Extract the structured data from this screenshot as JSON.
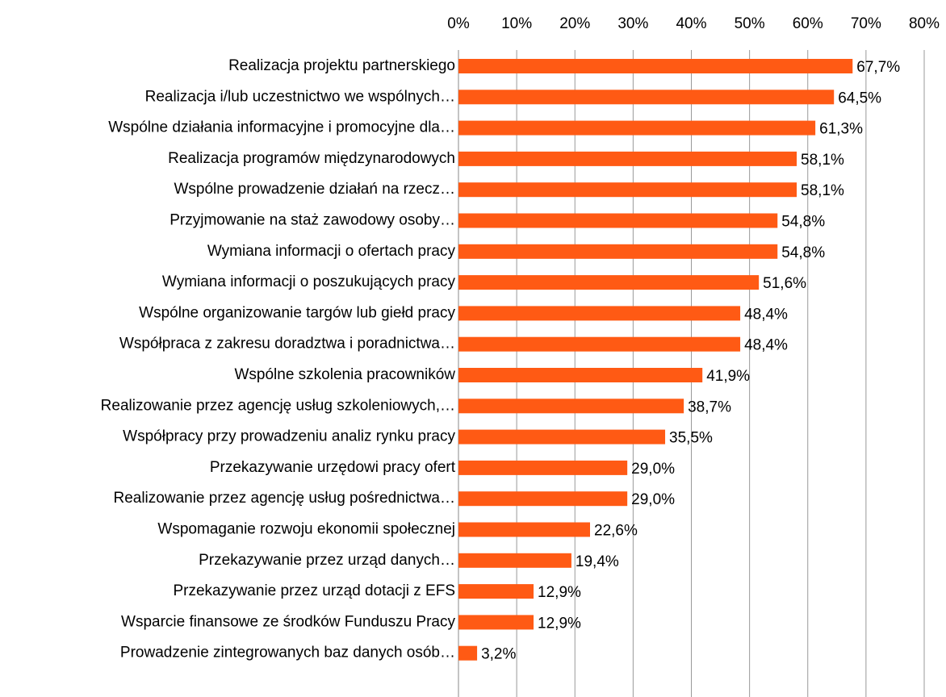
{
  "chart_data": {
    "type": "bar",
    "orientation": "horizontal",
    "categories": [
      "Realizacja projektu partnerskiego",
      "Realizacja i/lub uczestnictwo we wspólnych…",
      "Wspólne działania informacyjne i promocyjne dla…",
      "Realizacja programów międzynarodowych",
      "Wspólne prowadzenie działań na rzecz…",
      "Przyjmowanie na staż zawodowy osoby…",
      "Wymiana informacji o ofertach pracy",
      "Wymiana informacji o poszukujących pracy",
      "Wspólne organizowanie targów lub giełd pracy",
      "Współpraca z zakresu doradztwa i poradnictwa…",
      "Wspólne szkolenia pracowników",
      "Realizowanie przez agencję usług szkoleniowych,…",
      "Współpracy przy prowadzeniu analiz rynku pracy",
      "Przekazywanie urzędowi pracy ofert",
      "Realizowanie przez agencję usług pośrednictwa…",
      "Wspomaganie rozwoju ekonomii społecznej",
      "Przekazywanie przez urząd danych…",
      "Przekazywanie przez urząd dotacji z EFS",
      "Wsparcie finansowe ze środków Funduszu Pracy",
      "Prowadzenie zintegrowanych baz danych osób…"
    ],
    "values": [
      67.7,
      64.5,
      61.3,
      58.1,
      58.1,
      54.8,
      54.8,
      51.6,
      48.4,
      48.4,
      41.9,
      38.7,
      35.5,
      29.0,
      29.0,
      22.6,
      19.4,
      12.9,
      12.9,
      3.2
    ],
    "value_labels": [
      "67,7%",
      "64,5%",
      "61,3%",
      "58,1%",
      "58,1%",
      "54,8%",
      "54,8%",
      "51,6%",
      "48,4%",
      "48,4%",
      "41,9%",
      "38,7%",
      "35,5%",
      "29,0%",
      "29,0%",
      "22,6%",
      "19,4%",
      "12,9%",
      "12,9%",
      "3,2%"
    ],
    "color": "#ff5a14",
    "xlim": [
      0,
      80
    ],
    "xticks": [
      {
        "value": 0,
        "label": "0%"
      },
      {
        "value": 10,
        "label": "10%"
      },
      {
        "value": 20,
        "label": "20%"
      },
      {
        "value": 30,
        "label": "30%"
      },
      {
        "value": 40,
        "label": "40%"
      },
      {
        "value": 50,
        "label": "50%"
      },
      {
        "value": 60,
        "label": "60%"
      },
      {
        "value": 70,
        "label": "70%"
      },
      {
        "value": 80,
        "label": "80%"
      }
    ],
    "grid": true
  }
}
